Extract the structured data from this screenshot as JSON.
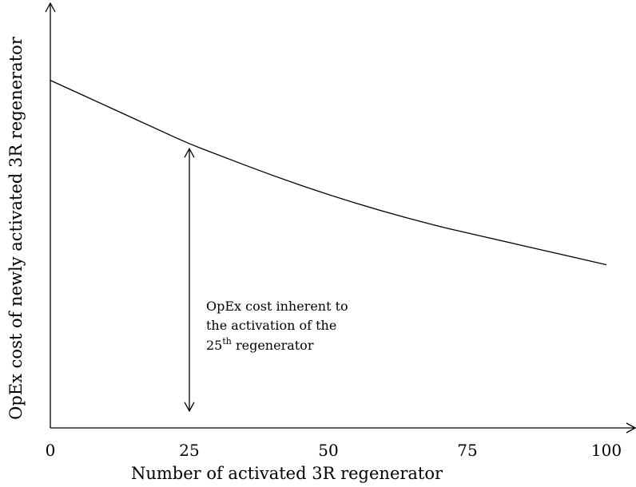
{
  "chart_data": {
    "type": "line",
    "title": "",
    "xlabel": "Number of activated 3R regenerator",
    "ylabel": "OpEx cost of newly activated 3R regenerator",
    "x_ticks": [
      "0",
      "25",
      "50",
      "75",
      "100"
    ],
    "xlim": [
      0,
      100
    ],
    "y_ticks": [],
    "grid": false,
    "legend": "none",
    "series": [
      {
        "x": [
          0,
          10,
          20,
          25,
          30,
          40,
          50,
          60,
          70,
          75,
          80,
          90,
          100
        ],
        "values": [
          0.82,
          0.76,
          0.7,
          0.67,
          0.645,
          0.595,
          0.55,
          0.51,
          0.475,
          0.46,
          0.445,
          0.415,
          0.385
        ]
      }
    ],
    "annotation": {
      "arrow_x": 25,
      "arrow_from": 0.04,
      "arrow_to": 0.67,
      "line1": "OpEx cost inherent to",
      "line2": "the activation of the",
      "line3_prefix": "25",
      "line3_sup": "th",
      "line3_suffix": " regenerator"
    }
  }
}
